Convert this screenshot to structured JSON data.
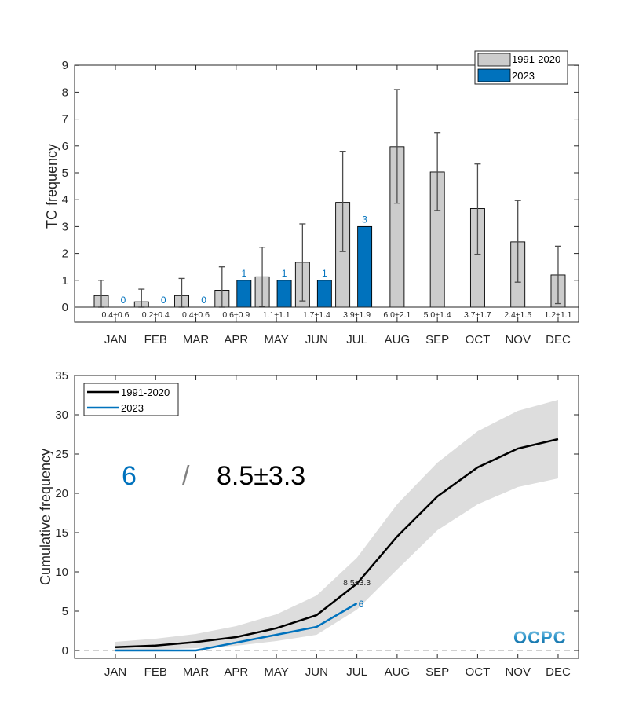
{
  "chart_data": [
    {
      "type": "bar",
      "ylabel": "TC frequency",
      "xlabel": "",
      "ylim": [
        0,
        9
      ],
      "yticks": [
        0,
        1,
        2,
        3,
        4,
        5,
        6,
        7,
        8,
        9
      ],
      "categories": [
        "JAN",
        "FEB",
        "MAR",
        "APR",
        "MAY",
        "JUN",
        "JUL",
        "AUG",
        "SEP",
        "OCT",
        "NOV",
        "DEC"
      ],
      "series": [
        {
          "name": "1991-2020",
          "color": "#cccccc",
          "values": [
            0.43,
            0.2,
            0.43,
            0.63,
            1.13,
            1.67,
            3.9,
            5.97,
            5.03,
            3.67,
            2.43,
            1.2
          ],
          "error_low": [
            0.0,
            0.0,
            0.0,
            0.0,
            0.03,
            0.23,
            2.07,
            3.87,
            3.6,
            1.97,
            0.93,
            0.13
          ],
          "error_high": [
            1.0,
            0.67,
            1.07,
            1.5,
            2.23,
            3.1,
            5.8,
            8.1,
            6.5,
            5.33,
            3.97,
            2.27
          ],
          "stat_labels": [
            "0.4±0.6",
            "0.2±0.4",
            "0.4±0.6",
            "0.6±0.9",
            "1.1±1.1",
            "1.7±1.4",
            "3.9±1.9",
            "6.0±2.1",
            "5.0±1.4",
            "3.7±1.7",
            "2.4±1.5",
            "1.2±1.1"
          ]
        },
        {
          "name": "2023",
          "color": "#0072bd",
          "values": [
            0,
            0,
            0,
            1,
            1,
            1,
            3,
            null,
            null,
            null,
            null,
            null
          ],
          "value_labels": [
            "0",
            "0",
            "0",
            "1",
            "1",
            "1",
            "3",
            "",
            "",
            "",
            "",
            ""
          ]
        }
      ],
      "legend": {
        "position": "top-right",
        "entries": [
          "1991-2020",
          "2023"
        ]
      },
      "grid": false
    },
    {
      "type": "line",
      "ylabel": "Cumulative frequency",
      "xlabel": "",
      "ylim": [
        0,
        35
      ],
      "yticks": [
        0,
        5,
        10,
        15,
        20,
        25,
        30,
        35
      ],
      "categories": [
        "JAN",
        "FEB",
        "MAR",
        "APR",
        "MAY",
        "JUN",
        "JUL",
        "AUG",
        "SEP",
        "OCT",
        "NOV",
        "DEC"
      ],
      "series": [
        {
          "name": "1991-2020",
          "color": "#000000",
          "values": [
            0.43,
            0.63,
            1.07,
            1.7,
            2.83,
            4.5,
            8.5,
            14.5,
            19.6,
            23.3,
            25.7,
            26.9
          ],
          "band_low": [
            0.0,
            0.1,
            0.3,
            0.6,
            1.2,
            2.0,
            5.2,
            10.3,
            15.3,
            18.6,
            20.8,
            21.9
          ],
          "band_high": [
            1.1,
            1.5,
            2.1,
            3.1,
            4.6,
            7.0,
            11.8,
            18.6,
            23.9,
            27.9,
            30.5,
            31.9
          ],
          "band_color": "#dddddd"
        },
        {
          "name": "2023",
          "color": "#0072bd",
          "values": [
            0,
            0,
            0,
            1,
            2,
            3,
            6,
            null,
            null,
            null,
            null,
            null
          ]
        }
      ],
      "annotations": [
        {
          "text": "8.5±3.3",
          "at_month": "JUL",
          "color": "#262626"
        },
        {
          "text": "6",
          "at_month": "JUL",
          "color": "#0072bd"
        }
      ],
      "summary": {
        "current": "6",
        "separator": "/",
        "climatology": "8.5±3.3",
        "current_color": "#0072bd",
        "separator_color": "#808080"
      },
      "reference_line": {
        "y": 0,
        "style": "dashed",
        "color": "#b3b3b3"
      },
      "legend": {
        "position": "top-left",
        "entries": [
          "1991-2020",
          "2023"
        ]
      },
      "grid": false
    }
  ],
  "logo": {
    "text": "OCPC"
  }
}
